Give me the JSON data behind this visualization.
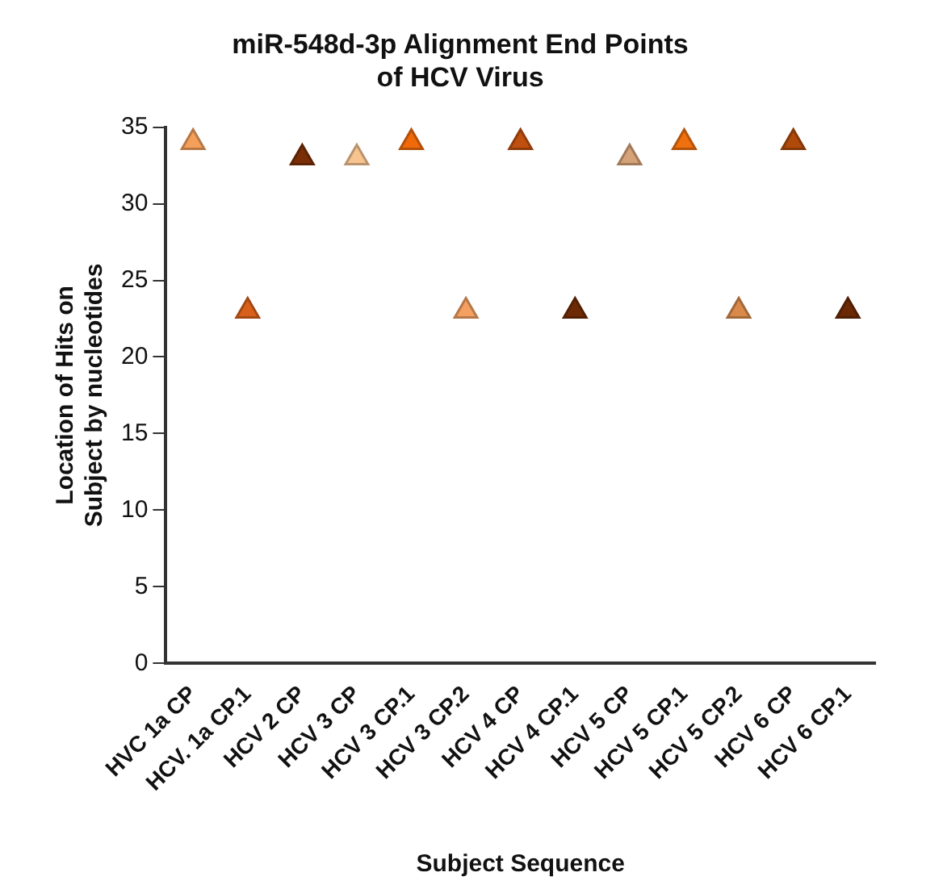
{
  "chart_data": {
    "type": "scatter",
    "title": "miR-548d-3p Alignment End Points\nof HCV Virus",
    "xlabel": "Subject Sequence",
    "ylabel": "Location of Hits on\nSubject by nucleotides",
    "categories": [
      "HVC 1a CP",
      "HCV. 1a CP.1",
      "HCV 2 CP",
      "HCV 3 CP",
      "HCV 3 CP.1",
      "HCV 3 CP.2",
      "HCV 4 CP",
      "HCV 4 CP.1",
      "HCV 5 CP",
      "HCV 5 CP.1",
      "HCV 5 CP.2",
      "HCV 6 CP",
      "HCV 6 CP.1"
    ],
    "values": [
      34,
      23,
      33,
      33,
      34,
      23,
      34,
      23,
      33,
      34,
      23,
      34,
      23
    ],
    "colors": [
      "#f5a05a",
      "#d9601a",
      "#7a2e05",
      "#f7c490",
      "#f06a0a",
      "#f3a060",
      "#c0500f",
      "#6e2a05",
      "#d6a278",
      "#f0700f",
      "#d98a4a",
      "#b04a0a",
      "#6a2805"
    ],
    "ylim": [
      0,
      35
    ],
    "yticks": [
      0,
      5,
      10,
      15,
      20,
      25,
      30,
      35
    ],
    "grid": false,
    "legend": false,
    "marker": "triangle"
  }
}
